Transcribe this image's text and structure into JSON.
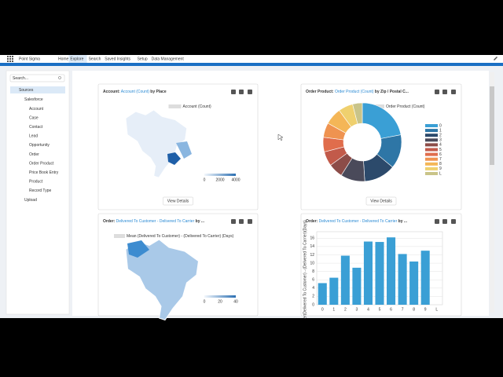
{
  "nav": {
    "brand": "Point Sigma",
    "tabs": [
      "Home",
      "Explore",
      "Search",
      "Saved Insights",
      "Setup",
      "Data Management"
    ]
  },
  "sidebar": {
    "search": "Search...",
    "root": "Sources",
    "group": "Salesforce",
    "items": [
      "Account",
      "Case",
      "Contact",
      "Lead",
      "Opportunity",
      "Order",
      "Order Product",
      "Price Book Entry",
      "Product",
      "Record Type"
    ],
    "other": "Upload"
  },
  "cards": [
    {
      "title": [
        "Account:",
        "Account (Count)",
        "by Place"
      ],
      "legend": "Account (Count)",
      "scale": [
        "0",
        "2000",
        "4000"
      ],
      "button": "View Details"
    },
    {
      "title": [
        "Order Product:",
        "Order Product (Count)",
        "by Zip / Postal C..."
      ],
      "legend": "Order Product (Count)",
      "button": "View Details"
    },
    {
      "title": [
        "Order:",
        "Delivered To Customer - Delivered To Carrier",
        "by ..."
      ],
      "legend": "Mean (Delivered To Customer) - (Delivered To Carrier) (Days)",
      "scale": [
        "0",
        "20",
        "40"
      ]
    },
    {
      "title": [
        "Order:",
        "Delivered To Customer - Delivered To Carrier",
        "by ..."
      ]
    }
  ],
  "chart_data": [
    {
      "type": "pie",
      "categories": [
        "0",
        "1",
        "2",
        "3",
        "4",
        "5",
        "6",
        "7",
        "8",
        "9",
        "L"
      ],
      "values": [
        22,
        14,
        13,
        10,
        6,
        6,
        6,
        6,
        7,
        6,
        4
      ],
      "colors": [
        "#3a9fd5",
        "#2e76a6",
        "#2c4a6b",
        "#4a4a5a",
        "#8c4c48",
        "#c25a4a",
        "#e06d4c",
        "#ef9350",
        "#f4b657",
        "#efd06e",
        "#c9c489"
      ]
    },
    {
      "type": "bar",
      "y_label": "er(Delivered To Customer) - (Delivered To Carrier)(Days)",
      "categories": [
        "0",
        "1",
        "2",
        "3",
        "4",
        "5",
        "6",
        "7",
        "8",
        "9",
        "L"
      ],
      "values": [
        5.2,
        6.5,
        11.8,
        8.9,
        15.2,
        15.1,
        16.2,
        12.2,
        10.4,
        13.0,
        null
      ],
      "color": "#3a9fd5",
      "ylim": [
        0,
        17
      ],
      "yticks": [
        0,
        2,
        4,
        6,
        8,
        10,
        12,
        14,
        16
      ],
      "grid": true
    }
  ]
}
